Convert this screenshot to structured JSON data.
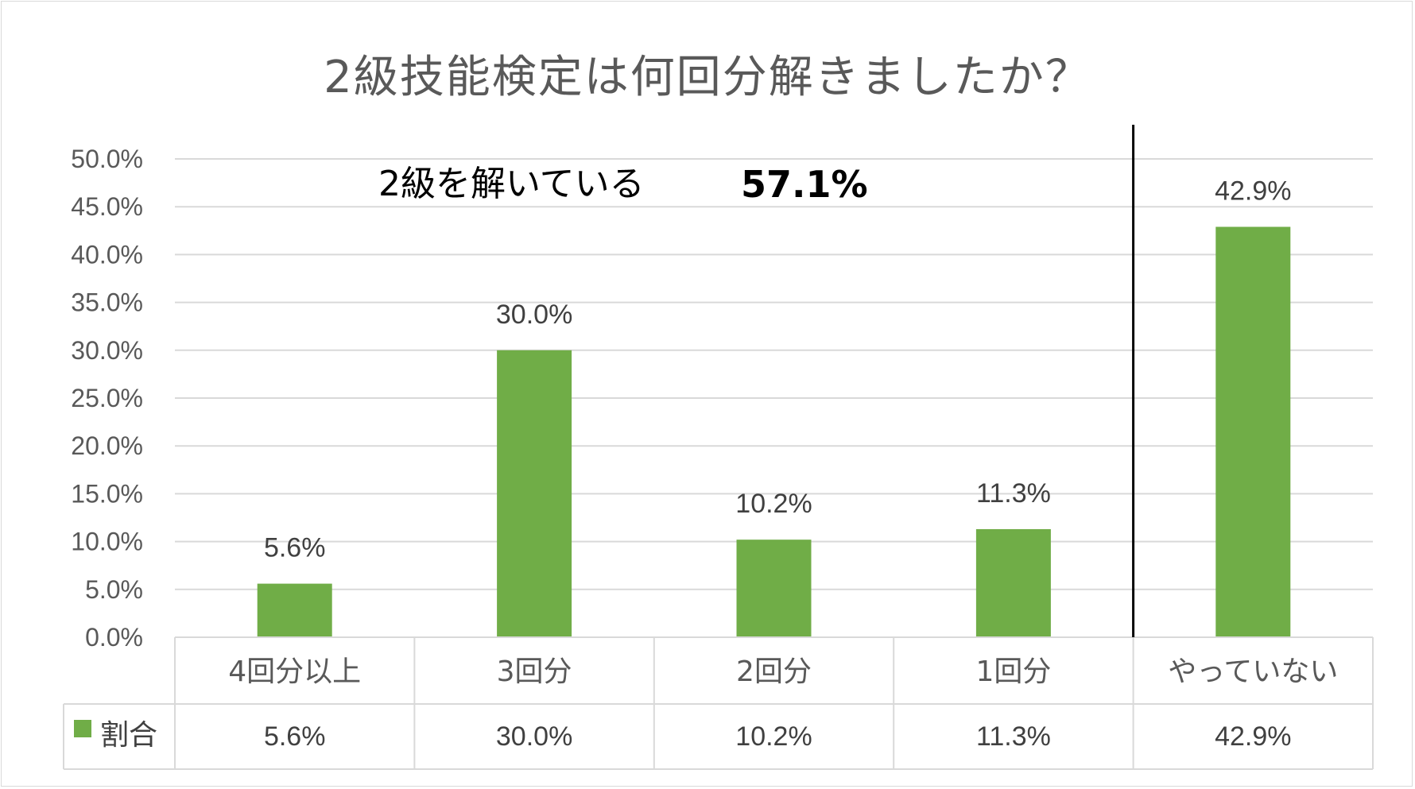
{
  "chart_data": {
    "type": "bar",
    "title": "2級技能検定は何回分解きましたか？",
    "categories": [
      "4回分以上",
      "3回分",
      "2回分",
      "1回分",
      "やっていない"
    ],
    "series": [
      {
        "name": "割合",
        "values": [
          5.6,
          30.0,
          10.2,
          11.3,
          42.9
        ],
        "color": "#70ad47"
      }
    ],
    "data_labels": [
      "5.6%",
      "30.0%",
      "10.2%",
      "11.3%",
      "42.9%"
    ],
    "yticks": [
      "0.0%",
      "5.0%",
      "10.0%",
      "15.0%",
      "20.0%",
      "25.0%",
      "30.0%",
      "35.0%",
      "40.0%",
      "45.0%",
      "50.0%"
    ],
    "ylim": [
      0,
      50
    ],
    "grid": true,
    "legend": "data-table",
    "annotation": {
      "text": "2級を解いている",
      "value": "57.1%"
    },
    "divider": "between 1回分 and やっていない"
  }
}
